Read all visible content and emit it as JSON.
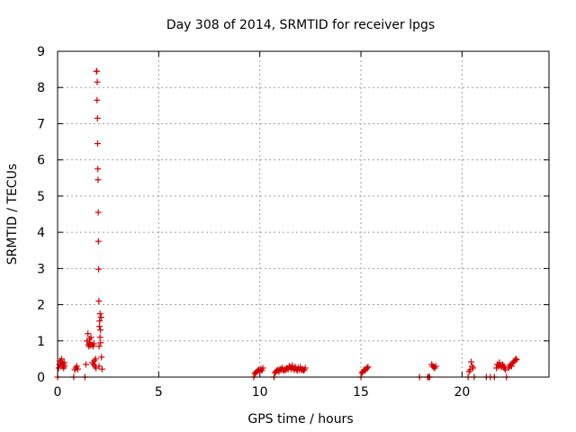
{
  "chart_data": {
    "type": "scatter",
    "title": "Day 308 of 2014, SRMTID for receiver lpgs",
    "xlabel": "GPS time / hours",
    "ylabel": "SRMTID / TECUs",
    "xlim": [
      0,
      24.3
    ],
    "ylim": [
      0,
      9
    ],
    "xticks": [
      0,
      5,
      10,
      15,
      20
    ],
    "yticks": [
      0,
      1,
      2,
      3,
      4,
      5,
      6,
      7,
      8,
      9
    ],
    "grid": true,
    "marker": "+",
    "color": "#d40000",
    "series": [
      {
        "name": "lpgs",
        "points": [
          [
            0.0,
            0.0
          ],
          [
            0.05,
            0.25
          ],
          [
            0.1,
            0.35
          ],
          [
            0.12,
            0.45
          ],
          [
            0.15,
            0.4
          ],
          [
            0.18,
            0.3
          ],
          [
            0.2,
            0.5
          ],
          [
            0.22,
            0.42
          ],
          [
            0.25,
            0.3
          ],
          [
            0.28,
            0.35
          ],
          [
            0.3,
            0.25
          ],
          [
            0.32,
            0.4
          ],
          [
            0.35,
            0.3
          ],
          [
            0.8,
            0.0
          ],
          [
            0.85,
            0.2
          ],
          [
            0.9,
            0.25
          ],
          [
            0.95,
            0.3
          ],
          [
            1.0,
            0.22
          ],
          [
            1.35,
            0.0
          ],
          [
            1.4,
            0.35
          ],
          [
            1.45,
            1.0
          ],
          [
            1.5,
            1.2
          ],
          [
            1.52,
            0.9
          ],
          [
            1.55,
            0.85
          ],
          [
            1.58,
            1.05
          ],
          [
            1.6,
            0.95
          ],
          [
            1.62,
            0.88
          ],
          [
            1.65,
            1.1
          ],
          [
            1.7,
            0.9
          ],
          [
            1.72,
            0.4
          ],
          [
            1.75,
            0.85
          ],
          [
            1.78,
            0.35
          ],
          [
            1.8,
            0.92
          ],
          [
            1.82,
            0.45
          ],
          [
            1.85,
            0.3
          ],
          [
            1.88,
            0.5
          ],
          [
            1.9,
            0.25
          ],
          [
            1.92,
            8.45
          ],
          [
            1.94,
            8.45
          ],
          [
            1.95,
            7.65
          ],
          [
            1.96,
            8.15
          ],
          [
            1.97,
            7.15
          ],
          [
            1.98,
            6.45
          ],
          [
            1.99,
            5.75
          ],
          [
            2.0,
            5.45
          ],
          [
            2.01,
            4.55
          ],
          [
            2.02,
            3.75
          ],
          [
            2.03,
            2.98
          ],
          [
            2.04,
            2.1
          ],
          [
            2.05,
            0.3
          ],
          [
            2.07,
            1.4
          ],
          [
            2.08,
            1.55
          ],
          [
            2.1,
            1.75
          ],
          [
            2.12,
            1.3
          ],
          [
            2.13,
            0.95
          ],
          [
            2.15,
            1.65
          ],
          [
            2.17,
            0.55
          ],
          [
            2.2,
            0.22
          ],
          [
            2.05,
            0.85
          ],
          [
            2.1,
            1.1
          ],
          [
            9.7,
            0.0
          ],
          [
            9.75,
            0.1
          ],
          [
            9.8,
            0.12
          ],
          [
            9.85,
            0.15
          ],
          [
            9.9,
            0.18
          ],
          [
            9.95,
            0.2
          ],
          [
            10.0,
            0.15
          ],
          [
            10.05,
            0.22
          ],
          [
            10.1,
            0.18
          ],
          [
            10.15,
            0.25
          ],
          [
            10.7,
            0.0
          ],
          [
            10.75,
            0.12
          ],
          [
            10.8,
            0.15
          ],
          [
            10.85,
            0.18
          ],
          [
            10.9,
            0.2
          ],
          [
            10.95,
            0.15
          ],
          [
            11.0,
            0.22
          ],
          [
            11.05,
            0.2
          ],
          [
            11.1,
            0.25
          ],
          [
            11.15,
            0.2
          ],
          [
            11.2,
            0.18
          ],
          [
            11.25,
            0.22
          ],
          [
            11.3,
            0.2
          ],
          [
            11.35,
            0.25
          ],
          [
            11.4,
            0.22
          ],
          [
            11.45,
            0.3
          ],
          [
            11.5,
            0.28
          ],
          [
            11.55,
            0.22
          ],
          [
            11.6,
            0.32
          ],
          [
            11.65,
            0.25
          ],
          [
            11.7,
            0.2
          ],
          [
            11.75,
            0.28
          ],
          [
            11.8,
            0.22
          ],
          [
            11.85,
            0.18
          ],
          [
            11.9,
            0.25
          ],
          [
            11.95,
            0.2
          ],
          [
            12.0,
            0.28
          ],
          [
            12.05,
            0.2
          ],
          [
            12.1,
            0.22
          ],
          [
            12.15,
            0.18
          ],
          [
            12.2,
            0.2
          ],
          [
            12.25,
            0.25
          ],
          [
            15.0,
            0.0
          ],
          [
            15.05,
            0.12
          ],
          [
            15.1,
            0.15
          ],
          [
            15.15,
            0.2
          ],
          [
            15.2,
            0.18
          ],
          [
            15.25,
            0.22
          ],
          [
            15.3,
            0.25
          ],
          [
            15.35,
            0.28
          ],
          [
            17.9,
            0.0
          ],
          [
            18.3,
            0.0
          ],
          [
            18.35,
            0.0
          ],
          [
            18.4,
            0.0
          ],
          [
            18.5,
            0.35
          ],
          [
            18.55,
            0.3
          ],
          [
            18.6,
            0.28
          ],
          [
            18.65,
            0.25
          ],
          [
            18.7,
            0.3
          ],
          [
            20.3,
            0.0
          ],
          [
            20.35,
            0.15
          ],
          [
            20.4,
            0.2
          ],
          [
            20.45,
            0.42
          ],
          [
            20.5,
            0.3
          ],
          [
            20.55,
            0.25
          ],
          [
            20.6,
            0.0
          ],
          [
            21.2,
            0.0
          ],
          [
            21.4,
            0.0
          ],
          [
            21.6,
            0.0
          ],
          [
            21.7,
            0.25
          ],
          [
            21.75,
            0.35
          ],
          [
            21.8,
            0.3
          ],
          [
            21.85,
            0.4
          ],
          [
            21.9,
            0.32
          ],
          [
            21.95,
            0.28
          ],
          [
            22.0,
            0.35
          ],
          [
            22.05,
            0.3
          ],
          [
            22.1,
            0.25
          ],
          [
            22.15,
            0.2
          ],
          [
            22.2,
            0.0
          ],
          [
            22.3,
            0.25
          ],
          [
            22.35,
            0.3
          ],
          [
            22.4,
            0.35
          ],
          [
            22.45,
            0.3
          ],
          [
            22.5,
            0.38
          ],
          [
            22.55,
            0.42
          ],
          [
            22.6,
            0.45
          ],
          [
            22.65,
            0.5
          ],
          [
            22.7,
            0.48
          ]
        ]
      }
    ]
  }
}
